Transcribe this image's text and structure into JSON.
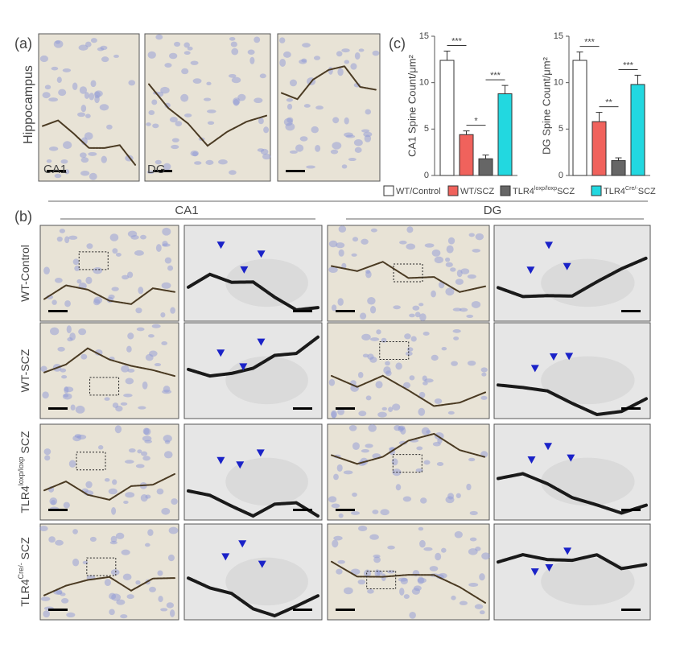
{
  "panel_labels": {
    "a": "(a)",
    "b": "(b)",
    "c": "(c)"
  },
  "panel_a": {
    "region": "Hippocampus",
    "images": [
      "CA1",
      "DG"
    ]
  },
  "panel_b": {
    "columns": [
      "CA1",
      "DG"
    ],
    "rows": [
      [
        "WT-Control"
      ],
      [
        "WT-SCZ"
      ],
      [
        "TLR4",
        "loxp/loxp",
        " SCZ"
      ],
      [
        "TLR4",
        "Cre/-",
        " SCZ"
      ]
    ]
  },
  "legend": [
    {
      "label": [
        "WT/Control"
      ],
      "color": "#ffffff"
    },
    {
      "label": [
        "WT/SCZ"
      ],
      "color": "#f0625c"
    },
    {
      "label": [
        "TLR4",
        "loxp/loxp",
        "SCZ"
      ],
      "color": "#666666"
    },
    {
      "label": [
        "TLR4",
        "Cre/-",
        "SCZ"
      ],
      "color": "#22d8e0"
    }
  ],
  "chart_data": [
    {
      "type": "bar",
      "y_label": "CA1 Spine Count/μm²",
      "values": [
        12.4,
        4.4,
        1.8,
        8.8
      ],
      "errors": [
        1.0,
        0.4,
        0.4,
        0.9
      ],
      "colors": [
        "#ffffff",
        "#f0625c",
        "#666666",
        "#22d8e0"
      ],
      "significance": [
        "***",
        "*",
        "***"
      ],
      "ylim": [
        0,
        15
      ],
      "yticks": [
        0,
        5,
        10,
        15
      ]
    },
    {
      "type": "bar",
      "y_label": "DG Spine Count/μm²",
      "values": [
        12.4,
        5.8,
        1.6,
        9.8
      ],
      "errors": [
        0.9,
        1.0,
        0.3,
        1.0
      ],
      "colors": [
        "#ffffff",
        "#f0625c",
        "#666666",
        "#22d8e0"
      ],
      "significance": [
        "***",
        "**",
        "***"
      ],
      "ylim": [
        0,
        15
      ],
      "yticks": [
        0,
        5,
        10,
        15
      ]
    }
  ]
}
